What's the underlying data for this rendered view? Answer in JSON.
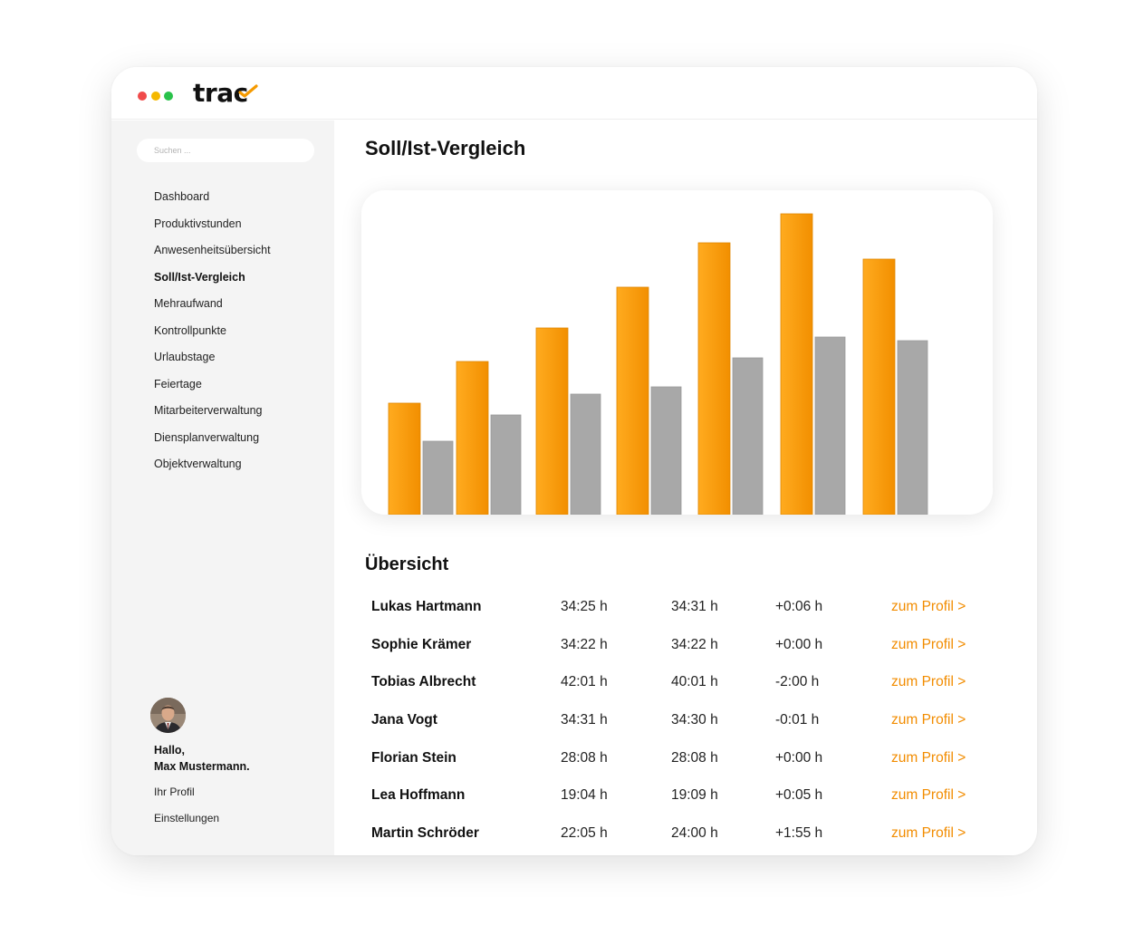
{
  "app": {
    "logo_text": "trac",
    "accent_color": "#f59a00",
    "window_dots": [
      "#f04a4a",
      "#f5b800",
      "#29c24a"
    ]
  },
  "search": {
    "placeholder": "Suchen ..."
  },
  "sidebar": {
    "items": [
      {
        "label": "Dashboard",
        "active": false
      },
      {
        "label": "Produktivstunden",
        "active": false
      },
      {
        "label": "Anwesenheitsübersicht",
        "active": false
      },
      {
        "label": "Soll/Ist-Vergleich",
        "active": true
      },
      {
        "label": "Mehraufwand",
        "active": false
      },
      {
        "label": "Kontrollpunkte",
        "active": false
      },
      {
        "label": "Urlaubstage",
        "active": false
      },
      {
        "label": "Feiertage",
        "active": false
      },
      {
        "label": "Mitarbeiterverwaltung",
        "active": false
      },
      {
        "label": "Diensplanverwaltung",
        "active": false
      },
      {
        "label": "Objektverwaltung",
        "active": false
      }
    ]
  },
  "user": {
    "greeting": "Hallo,",
    "name": "Max Mustermann.",
    "profile_label": "Ihr Profil",
    "settings_label": "Einstellungen"
  },
  "main": {
    "title": "Soll/Ist-Vergleich",
    "overview_title": "Übersicht"
  },
  "chart_data": {
    "type": "bar",
    "categories": [
      "",
      "",
      "",
      "",
      "",
      "",
      ""
    ],
    "series": [
      {
        "color": "#f59a00",
        "values": [
          123,
          169,
          206,
          251,
          300,
          332,
          282
        ]
      },
      {
        "color": "#a8a8a8",
        "values": [
          81,
          110,
          133,
          141,
          173,
          196,
          192
        ]
      }
    ],
    "ylim": [
      0,
      358
    ],
    "grid": false,
    "legend": "none"
  },
  "overview": {
    "rows": [
      {
        "name": "Lukas Hartmann",
        "soll": "34:25 h",
        "ist": "34:31 h",
        "diff": "+0:06 h",
        "link": "zum Profil >"
      },
      {
        "name": "Sophie Krämer",
        "soll": "34:22 h",
        "ist": "34:22 h",
        "diff": "+0:00 h",
        "link": "zum Profil >"
      },
      {
        "name": "Tobias Albrecht",
        "soll": "42:01 h",
        "ist": "40:01 h",
        "diff": "-2:00 h",
        "link": "zum Profil >"
      },
      {
        "name": "Jana Vogt",
        "soll": "34:31 h",
        "ist": "34:30 h",
        "diff": "-0:01 h",
        "link": "zum Profil >"
      },
      {
        "name": "Florian Stein",
        "soll": "28:08 h",
        "ist": "28:08 h",
        "diff": "+0:00 h",
        "link": "zum Profil >"
      },
      {
        "name": "Lea Hoffmann",
        "soll": "19:04 h",
        "ist": "19:09 h",
        "diff": "+0:05 h",
        "link": "zum Profil >"
      },
      {
        "name": "Martin Schröder",
        "soll": "22:05 h",
        "ist": "24:00 h",
        "diff": "+1:55 h",
        "link": "zum Profil >"
      }
    ]
  }
}
